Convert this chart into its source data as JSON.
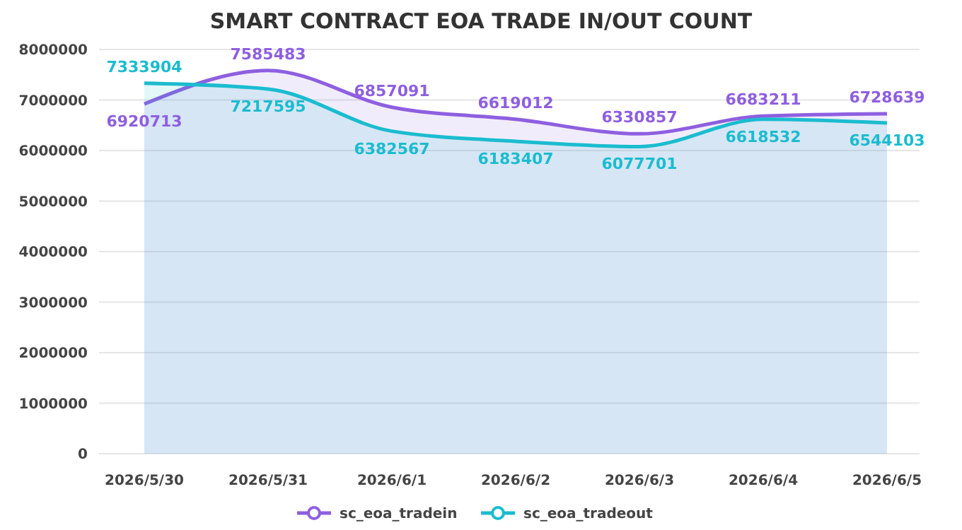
{
  "chart_data": {
    "type": "area",
    "title": "SMART CONTRACT EOA TRADE IN/OUT COUNT",
    "categories": [
      "2026/5/30",
      "2026/5/31",
      "2026/6/1",
      "2026/6/2",
      "2026/6/3",
      "2026/6/4",
      "2026/6/5"
    ],
    "series": [
      {
        "name": "sc_eoa_tradein",
        "color": "#8e5fe0",
        "values": [
          6920713,
          7585483,
          6857091,
          6619012,
          6330857,
          6683211,
          6728639
        ]
      },
      {
        "name": "sc_eoa_tradeout",
        "color": "#1bbccf",
        "values": [
          7333904,
          7217595,
          6382567,
          6183407,
          6077701,
          6618532,
          6544103
        ]
      }
    ],
    "ylim": [
      0,
      8000000
    ],
    "yticks": [
      0,
      1000000,
      2000000,
      3000000,
      4000000,
      5000000,
      6000000,
      7000000,
      8000000
    ],
    "grid": "y",
    "legend": "bottom",
    "data_labels": true
  }
}
